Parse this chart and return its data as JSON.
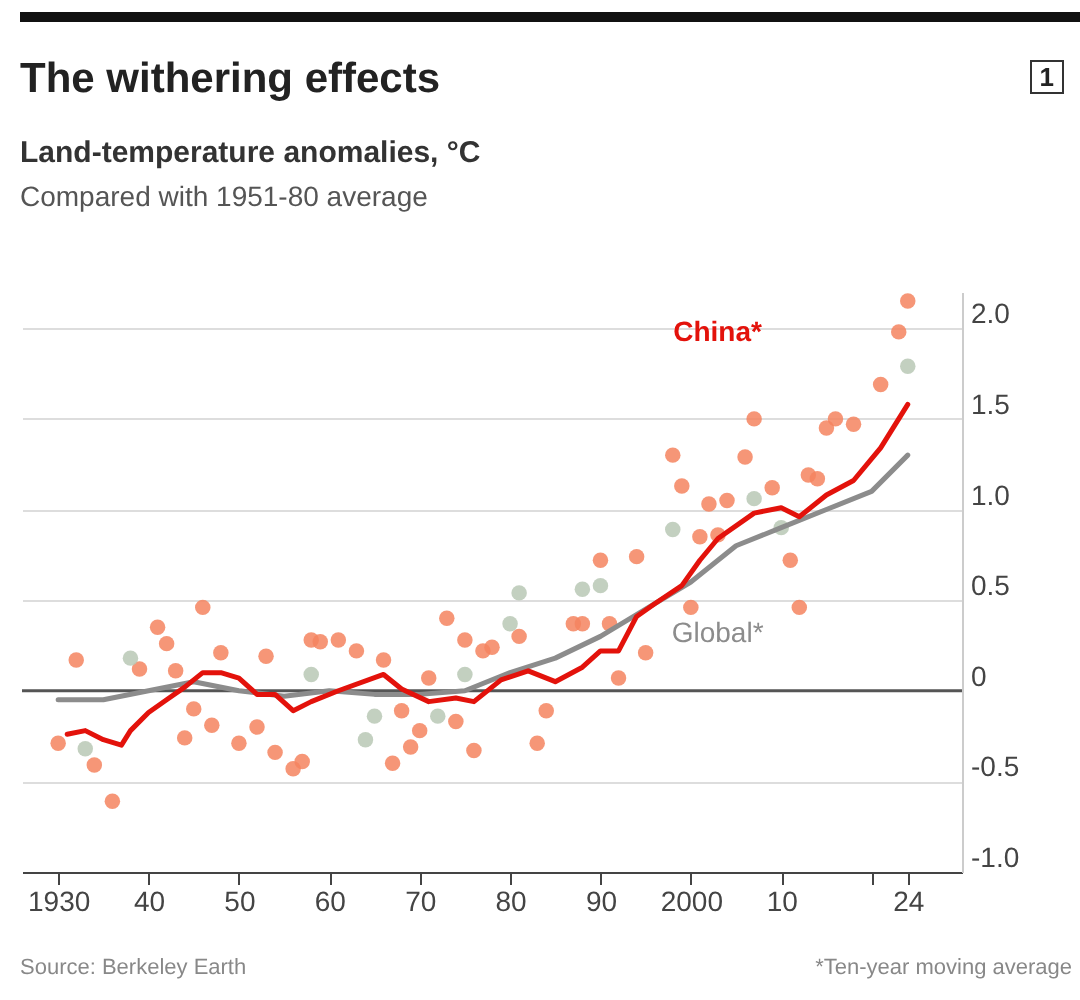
{
  "chart_data": {
    "type": "scatter",
    "title": "The withering effects",
    "ylabel": "Land-temperature anomalies, °C",
    "subtitle": "Compared with 1951-80 average",
    "annotations": [
      "1",
      "Source: Berkeley Earth",
      "*Ten-year moving average"
    ],
    "xlim": [
      1926,
      2030
    ],
    "xticks": [
      1930,
      {
        "value": 1940,
        "label": "40"
      },
      {
        "value": 1950,
        "label": "50"
      },
      {
        "value": 1960,
        "label": "60"
      },
      {
        "value": 1970,
        "label": "70"
      },
      {
        "value": 1980,
        "label": "80"
      },
      {
        "value": 1990,
        "label": "90"
      },
      2000,
      {
        "value": 2010,
        "label": "10"
      },
      {
        "value": 2020,
        "label": null
      },
      {
        "value": 2024,
        "label": "24"
      }
    ],
    "ylim": [
      -1,
      2.2
    ],
    "yticks": [
      {
        "value": -1,
        "label": "-1.0"
      },
      -0.5,
      0,
      0.5,
      {
        "value": 1,
        "label": "1.0"
      },
      1.5,
      {
        "value": 2,
        "label": "2.0"
      }
    ],
    "grid": "y",
    "ref_lines": [
      {
        "axis": "y",
        "value": 0,
        "color": "#555555"
      }
    ],
    "series": [
      {
        "type": "scatter",
        "marker": "circle",
        "color": "#f4845f",
        "x": [
          1930,
          1932,
          1934,
          1936,
          1939,
          1941,
          1942,
          1943,
          1944,
          1945,
          1946,
          1947,
          1948,
          1950,
          1952,
          1953,
          1954,
          1956,
          1957,
          1958,
          1959,
          1961,
          1963,
          1966,
          1967,
          1968,
          1969,
          1970,
          1971,
          1973,
          1974,
          1975,
          1976,
          1977,
          1978,
          1981,
          1983,
          1984,
          1987,
          1988,
          1990,
          1991,
          1992,
          1994,
          1995,
          1998,
          1999,
          2000,
          2001,
          2002,
          2003,
          2004,
          2006,
          2007,
          2009,
          2011,
          2012,
          2013,
          2014,
          2015,
          2016,
          2018,
          2021,
          2023,
          2024
        ],
        "values": [
          -0.29,
          0.17,
          -0.41,
          -0.61,
          0.12,
          0.35,
          0.26,
          0.11,
          -0.26,
          -0.1,
          0.46,
          -0.19,
          0.21,
          -0.29,
          -0.2,
          0.19,
          -0.34,
          -0.43,
          -0.39,
          0.28,
          0.27,
          0.28,
          0.22,
          0.17,
          -0.4,
          -0.11,
          -0.31,
          -0.22,
          0.07,
          0.4,
          -0.17,
          0.28,
          -0.33,
          0.22,
          0.24,
          0.3,
          -0.29,
          -0.11,
          0.37,
          0.37,
          0.72,
          0.37,
          0.07,
          0.74,
          0.21,
          1.3,
          1.13,
          0.46,
          0.85,
          1.03,
          0.86,
          1.05,
          1.29,
          1.5,
          1.12,
          0.72,
          0.46,
          1.19,
          1.17,
          1.45,
          1.5,
          1.47,
          1.69,
          1.98,
          2.15
        ]
      },
      {
        "type": "scatter",
        "marker": "circle",
        "color": "#b9c8b5",
        "x": [
          1933,
          1938,
          1958,
          1964,
          1965,
          1972,
          1975,
          1980,
          1981,
          1988,
          1990,
          1998,
          2000,
          2007,
          2010,
          2024
        ],
        "values": [
          -0.32,
          0.18,
          0.09,
          -0.27,
          -0.14,
          -0.14,
          0.09,
          0.37,
          0.54,
          0.56,
          0.58,
          0.89,
          null,
          1.06,
          0.9,
          1.79
        ]
      },
      {
        "type": "line",
        "name": "Global*",
        "marker": "none",
        "color": "#8c8c8c",
        "x": [
          1930,
          1935,
          1940,
          1945,
          1950,
          1955,
          1960,
          1965,
          1970,
          1975,
          1980,
          1985,
          1990,
          1995,
          2000,
          2005,
          2010,
          2015,
          2020,
          2024
        ],
        "values": [
          -0.05,
          -0.05,
          0,
          0.05,
          0,
          -0.03,
          0,
          -0.02,
          -0.02,
          0,
          0.1,
          0.18,
          0.3,
          0.45,
          0.6,
          0.8,
          0.9,
          1,
          1.1,
          1.3
        ]
      },
      {
        "type": "line",
        "name": "China*",
        "marker": "none",
        "color": "#e3120b",
        "x": [
          1931,
          1933,
          1935,
          1937,
          1938,
          1940,
          1942,
          1944,
          1946,
          1948,
          1950,
          1952,
          1954,
          1956,
          1958,
          1961,
          1966,
          1968,
          1971,
          1974,
          1976,
          1979,
          1982,
          1985,
          1988,
          1990,
          1992,
          1994,
          1996,
          1999,
          2001,
          2003,
          2007,
          2010,
          2012,
          2015,
          2018,
          2021,
          2024
        ],
        "values": [
          -0.24,
          -0.22,
          -0.27,
          -0.3,
          -0.22,
          -0.12,
          -0.05,
          0.02,
          0.1,
          0.1,
          0.07,
          -0.02,
          -0.02,
          -0.11,
          -0.06,
          0,
          0.09,
          0.01,
          -0.06,
          -0.04,
          -0.06,
          0.06,
          0.11,
          0.05,
          0.13,
          0.22,
          0.22,
          0.41,
          0.48,
          0.58,
          0.72,
          0.84,
          0.98,
          1.01,
          0.96,
          1.08,
          1.16,
          1.34,
          1.58
        ]
      }
    ]
  }
}
